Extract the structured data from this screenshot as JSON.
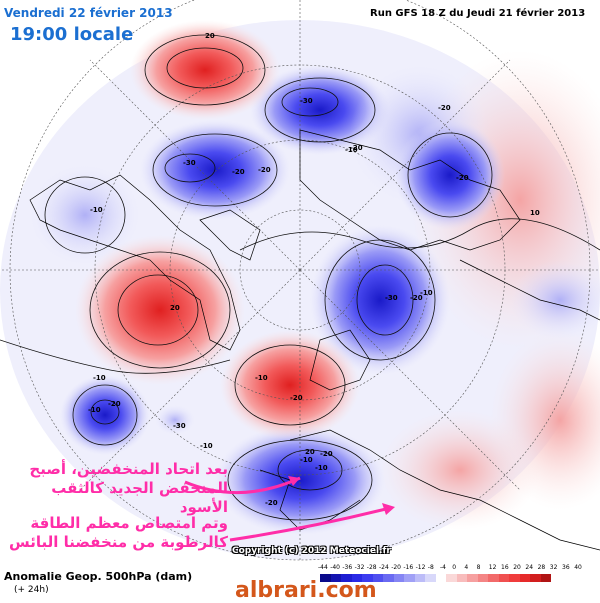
{
  "header": {
    "date": "Vendredi 22 février 2013",
    "time": "19:00 locale",
    "run": "Run GFS 18 Z du Jeudi 21 février 2013"
  },
  "footer": {
    "title": "Anomalie Geop. 500hPa (dam)",
    "subtitle": "(+ 24h)",
    "copyright": "Copyright (c) 2012 Meteociel.fr",
    "watermark": "albrari.com"
  },
  "annotations": {
    "text1": "بعد اتحاد المنخفضين، أصبح المنخفض الجديد كالثقب الأسود",
    "text2": "وتم امتصاص معظم الطاقة كالرطوبة من منخفضنا البائس",
    "arrow_color": "#ff2da8"
  },
  "colorbar": {
    "labels": [
      "-44",
      "-40",
      "-36",
      "-32",
      "-28",
      "-24",
      "-20",
      "-16",
      "-12",
      "-8",
      "-4",
      "0",
      "4",
      "8",
      "12",
      "16",
      "20",
      "24",
      "28",
      "32",
      "36",
      "40"
    ],
    "colors": [
      "#0a0a8a",
      "#1414b0",
      "#1e1ed2",
      "#2a2ae6",
      "#3c3cf0",
      "#5050f0",
      "#6a6af2",
      "#8585f4",
      "#a0a0f6",
      "#bcbcf8",
      "#d8d8fa",
      "#ffffff",
      "#fad8d8",
      "#f8bcbc",
      "#f6a0a0",
      "#f48585",
      "#f26a6a",
      "#f05050",
      "#f03c3c",
      "#e62a2a",
      "#d21e1e",
      "#b01414"
    ]
  },
  "contour_labels": [
    {
      "text": "20"
    },
    {
      "text": "-30"
    },
    {
      "text": "-20"
    },
    {
      "text": "-20"
    },
    {
      "text": "-20"
    },
    {
      "text": "-30"
    },
    {
      "text": "-20"
    },
    {
      "text": "-10"
    },
    {
      "text": "-20"
    },
    {
      "text": "-10"
    },
    {
      "text": "10"
    },
    {
      "text": "20"
    },
    {
      "text": "-10"
    },
    {
      "text": "-30"
    },
    {
      "text": "-20"
    },
    {
      "text": "-10"
    },
    {
      "text": "-20"
    },
    {
      "text": "-10"
    },
    {
      "text": "-10"
    },
    {
      "text": "-20"
    },
    {
      "text": "-30"
    },
    {
      "text": "-10"
    },
    {
      "text": "20"
    },
    {
      "text": "-10"
    },
    {
      "text": "-20"
    },
    {
      "text": "-20"
    },
    {
      "text": "-10"
    }
  ]
}
